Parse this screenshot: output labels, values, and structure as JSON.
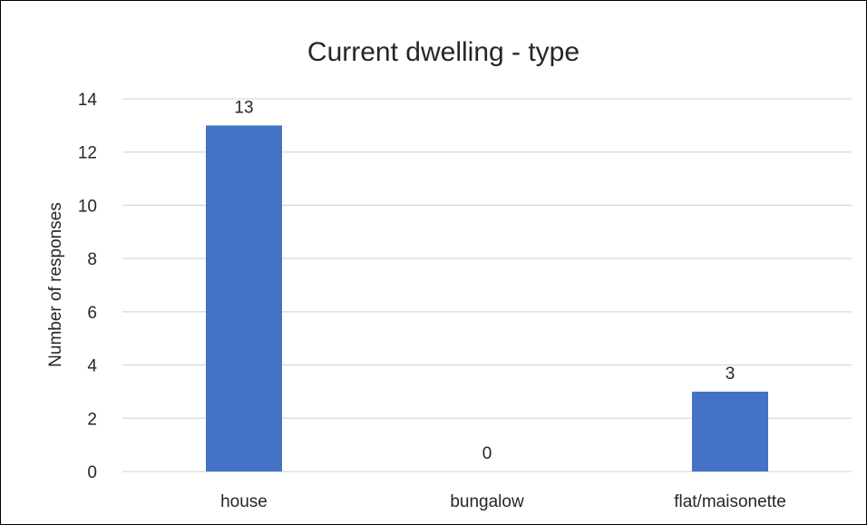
{
  "chart_data": {
    "type": "bar",
    "title": "Current dwelling - type",
    "ylabel": "Number of responses",
    "xlabel": "",
    "categories": [
      "house",
      "bungalow",
      "flat/maisonette"
    ],
    "values": [
      13,
      0,
      3
    ],
    "data_labels": [
      "13",
      "0",
      "3"
    ],
    "ylim": [
      0,
      14
    ],
    "yticks": [
      0,
      2,
      4,
      6,
      8,
      10,
      12,
      14
    ],
    "ytick_labels": [
      "0",
      "2",
      "4",
      "6",
      "8",
      "10",
      "12",
      "14"
    ],
    "grid": true,
    "legend": "none",
    "colors": {
      "bar": "#4472c4",
      "grid": "#d9d9d9",
      "text": "#262626"
    }
  }
}
